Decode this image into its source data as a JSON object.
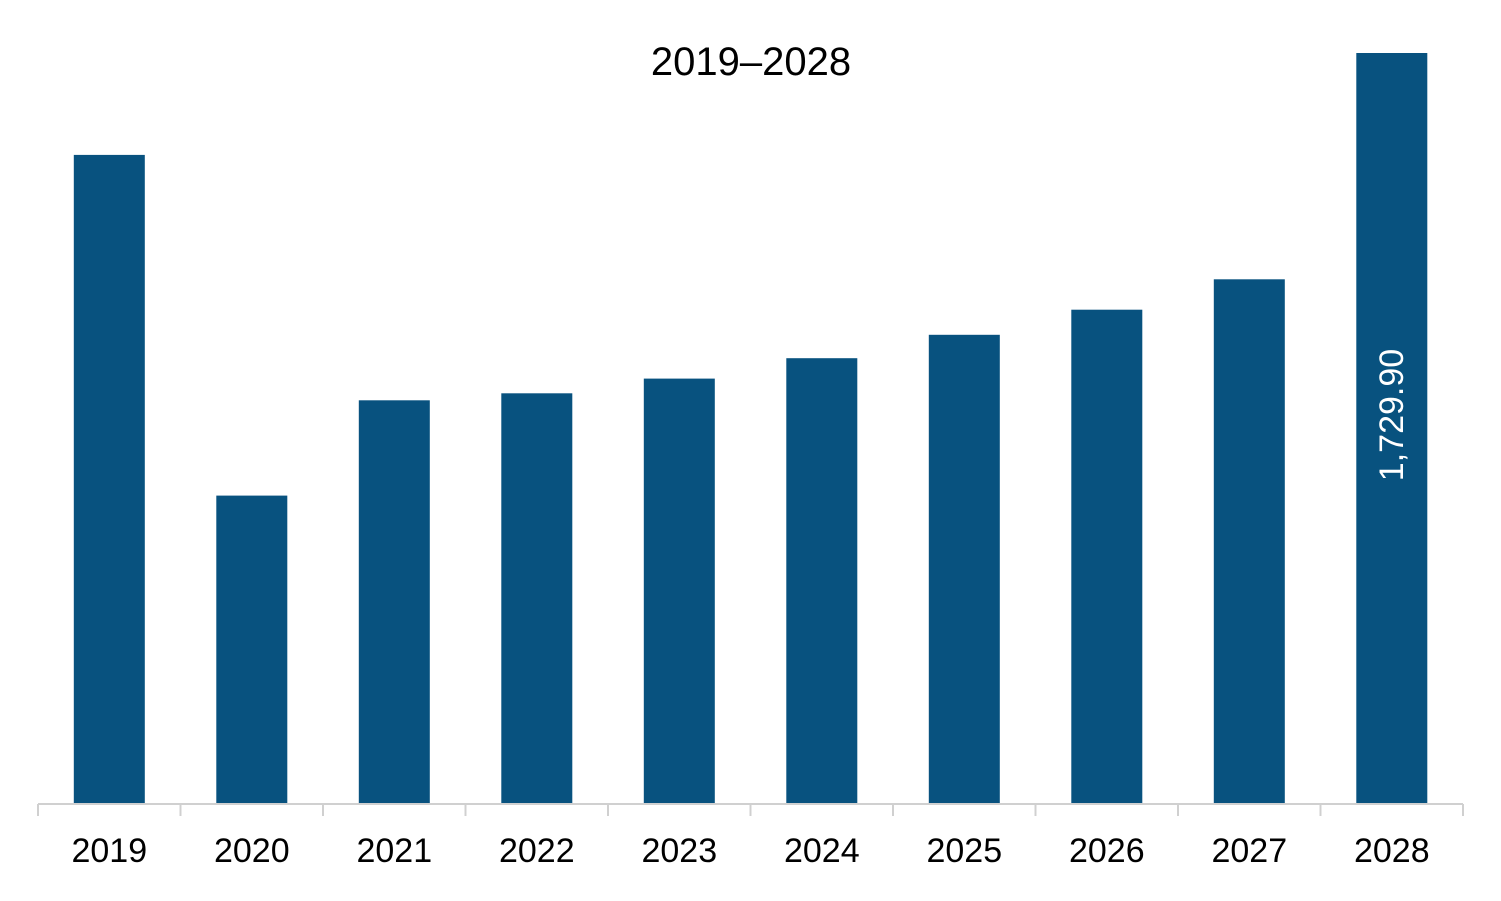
{
  "chart_data": {
    "type": "bar",
    "title": "2019–2028",
    "xlabel": "",
    "ylabel": "",
    "categories": [
      "2019",
      "2020",
      "2021",
      "2022",
      "2023",
      "2024",
      "2025",
      "2026",
      "2027",
      "2028"
    ],
    "values": [
      1495,
      709,
      929,
      945,
      979,
      1026,
      1080,
      1138,
      1208,
      1729.9
    ],
    "data_labels": [
      {
        "category": "2028",
        "text": "1,729.90",
        "orientation": "vertical"
      }
    ],
    "ylim": [
      0,
      1760
    ],
    "grid": false,
    "legend": "none",
    "bar_color": "#08527F",
    "axis_color": "#D0D0D0"
  }
}
